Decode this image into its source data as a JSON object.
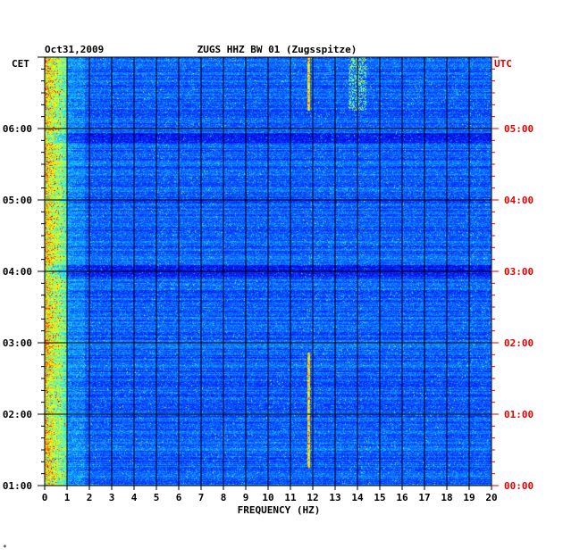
{
  "chart_data": {
    "type": "heatmap",
    "date": "Oct31,2009",
    "title": "ZUGS HHZ BW 01 (Zugsspitze)",
    "left_timezone": "CET",
    "right_timezone": "UTC",
    "xlabel": "FREQUENCY (HZ)",
    "xlim": [
      0,
      20
    ],
    "x_ticks": [
      "0",
      "1",
      "2",
      "3",
      "4",
      "5",
      "6",
      "7",
      "8",
      "9",
      "10",
      "11",
      "12",
      "13",
      "14",
      "15",
      "16",
      "17",
      "18",
      "19",
      "20"
    ],
    "y_ticks_cet": [
      "07:00",
      "06:00",
      "05:00",
      "04:00",
      "03:00",
      "02:00",
      "01:00"
    ],
    "y_ticks_utc": [
      "06:00",
      "05:00",
      "04:00",
      "03:00",
      "02:00",
      "01:00",
      "00:00"
    ],
    "y_labels_cet": [
      "06:00",
      "05:00",
      "04:00",
      "03:00",
      "02:00",
      "01:00"
    ],
    "y_labels_utc": [
      "05:00",
      "04:00",
      "03:00",
      "02:00",
      "01:00",
      "00:00"
    ],
    "time_range_cet": [
      "01:00",
      "07:00"
    ],
    "grid": true,
    "colormap": [
      "#00008c",
      "#0000d8",
      "#0a3cff",
      "#0fa0ff",
      "#20e0ff",
      "#a0ff60",
      "#ffff00",
      "#ff8000",
      "#e00000"
    ],
    "features": {
      "low_freq_energy_hz": [
        0,
        1
      ],
      "spectral_line_hz": 11.8,
      "spectral_band_hz": [
        13.6,
        14.4
      ]
    }
  },
  "corner_mark": "*"
}
